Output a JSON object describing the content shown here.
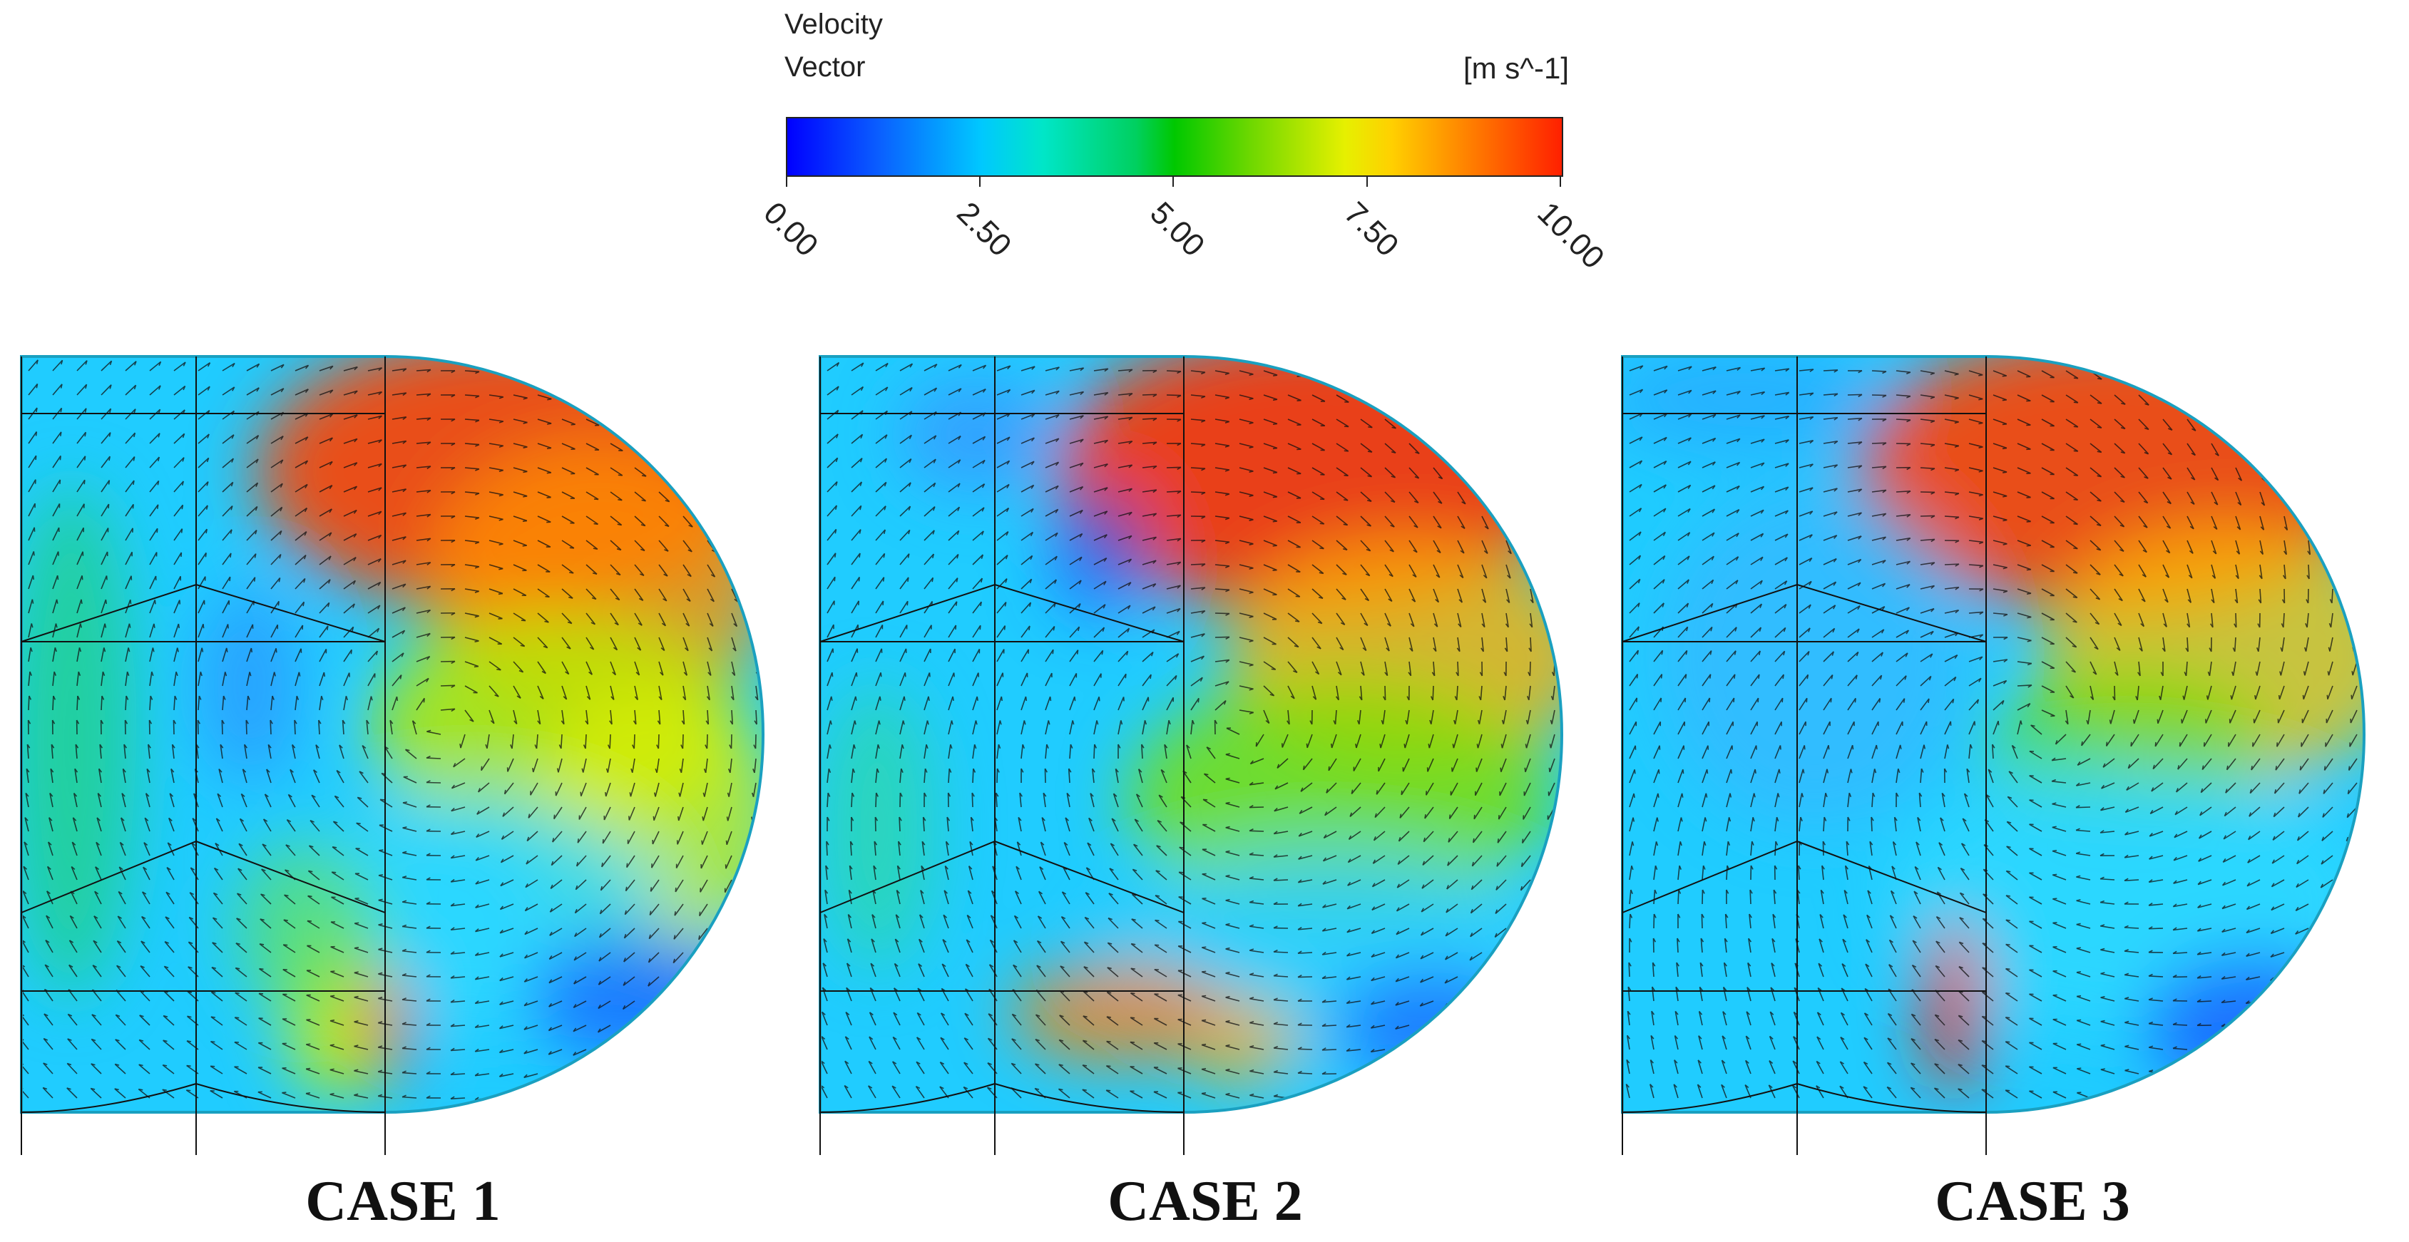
{
  "legend": {
    "title": "Velocity",
    "subtitle": "Vector",
    "unit": "[m s^-1]",
    "ticks": [
      "0.00",
      "2.50",
      "5.00",
      "7.50",
      "10.00"
    ],
    "range": [
      0,
      10
    ]
  },
  "colors": {
    "low": "#0000ff",
    "mid_low": "#00c8ff",
    "mid": "#00c800",
    "mid_high": "#e6f000",
    "high": "#ff2000"
  },
  "cases": [
    {
      "label": "CASE 1"
    },
    {
      "label": "CASE 2"
    },
    {
      "label": "CASE 3"
    }
  ]
}
